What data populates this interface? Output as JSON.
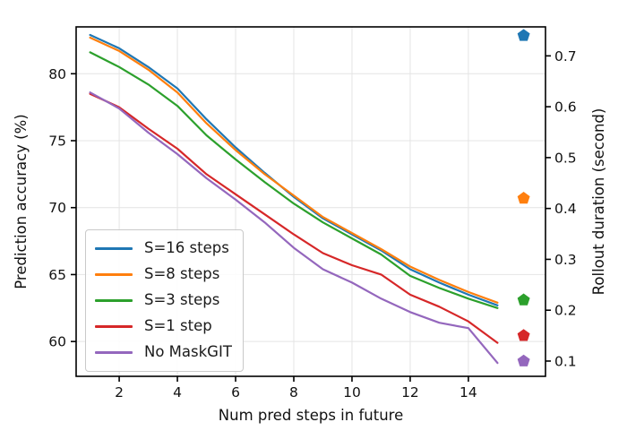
{
  "chart_data": {
    "type": "line",
    "x": [
      1,
      2,
      3,
      4,
      5,
      6,
      7,
      8,
      9,
      10,
      11,
      12,
      13,
      14,
      15
    ],
    "series": [
      {
        "name": "S=16 steps",
        "color": "#1f77b4",
        "values": [
          82.9,
          81.9,
          80.5,
          78.9,
          76.6,
          74.5,
          72.6,
          70.8,
          69.2,
          68.0,
          66.8,
          65.4,
          64.4,
          63.5,
          62.7
        ],
        "rollout_duration": 0.74
      },
      {
        "name": "S=8 steps",
        "color": "#ff7f0e",
        "values": [
          82.7,
          81.7,
          80.3,
          78.6,
          76.3,
          74.3,
          72.5,
          70.9,
          69.3,
          68.1,
          66.9,
          65.6,
          64.6,
          63.7,
          62.9
        ],
        "rollout_duration": 0.42
      },
      {
        "name": "S=3 steps",
        "color": "#2ca02c",
        "values": [
          81.6,
          80.5,
          79.2,
          77.6,
          75.4,
          73.6,
          71.9,
          70.3,
          68.9,
          67.7,
          66.5,
          64.9,
          64.0,
          63.2,
          62.5
        ],
        "rollout_duration": 0.22
      },
      {
        "name": "S=1 step",
        "color": "#d62728",
        "values": [
          78.5,
          77.5,
          75.9,
          74.4,
          72.5,
          71.0,
          69.5,
          68.0,
          66.6,
          65.7,
          65.0,
          63.5,
          62.6,
          61.5,
          59.9
        ],
        "rollout_duration": 0.15
      },
      {
        "name": "No MaskGIT",
        "color": "#9467bd",
        "values": [
          78.6,
          77.4,
          75.6,
          74.0,
          72.2,
          70.6,
          68.9,
          67.0,
          65.4,
          64.4,
          63.2,
          62.2,
          61.4,
          61.0,
          58.4
        ],
        "rollout_duration": 0.1
      }
    ],
    "duration_markers": {
      "shape": "pentagon",
      "x_position": 15.9,
      "axis": "right"
    },
    "axes": {
      "x": {
        "label": "Num pred steps in future",
        "ticks": [
          "2",
          "4",
          "6",
          "8",
          "10",
          "12",
          "14"
        ],
        "range": [
          0.52,
          16.65
        ]
      },
      "y_left": {
        "label": "Prediction accuracy (%)",
        "ticks": [
          "60",
          "65",
          "70",
          "75",
          "80"
        ],
        "range": [
          57.4,
          83.5
        ]
      },
      "y_right": {
        "label": "Rollout duration (second)",
        "ticks": [
          "0.1",
          "0.2",
          "0.3",
          "0.4",
          "0.5",
          "0.6",
          "0.7"
        ],
        "range": [
          0.07,
          0.757
        ]
      }
    },
    "legend": {
      "position": "lower left",
      "labels": [
        "S=16 steps",
        "S=8 steps",
        "S=3 steps",
        "S=1 step",
        "No MaskGIT"
      ]
    },
    "grid": true,
    "grid_color": "#e4e4e4",
    "spine_color": "#000000"
  }
}
